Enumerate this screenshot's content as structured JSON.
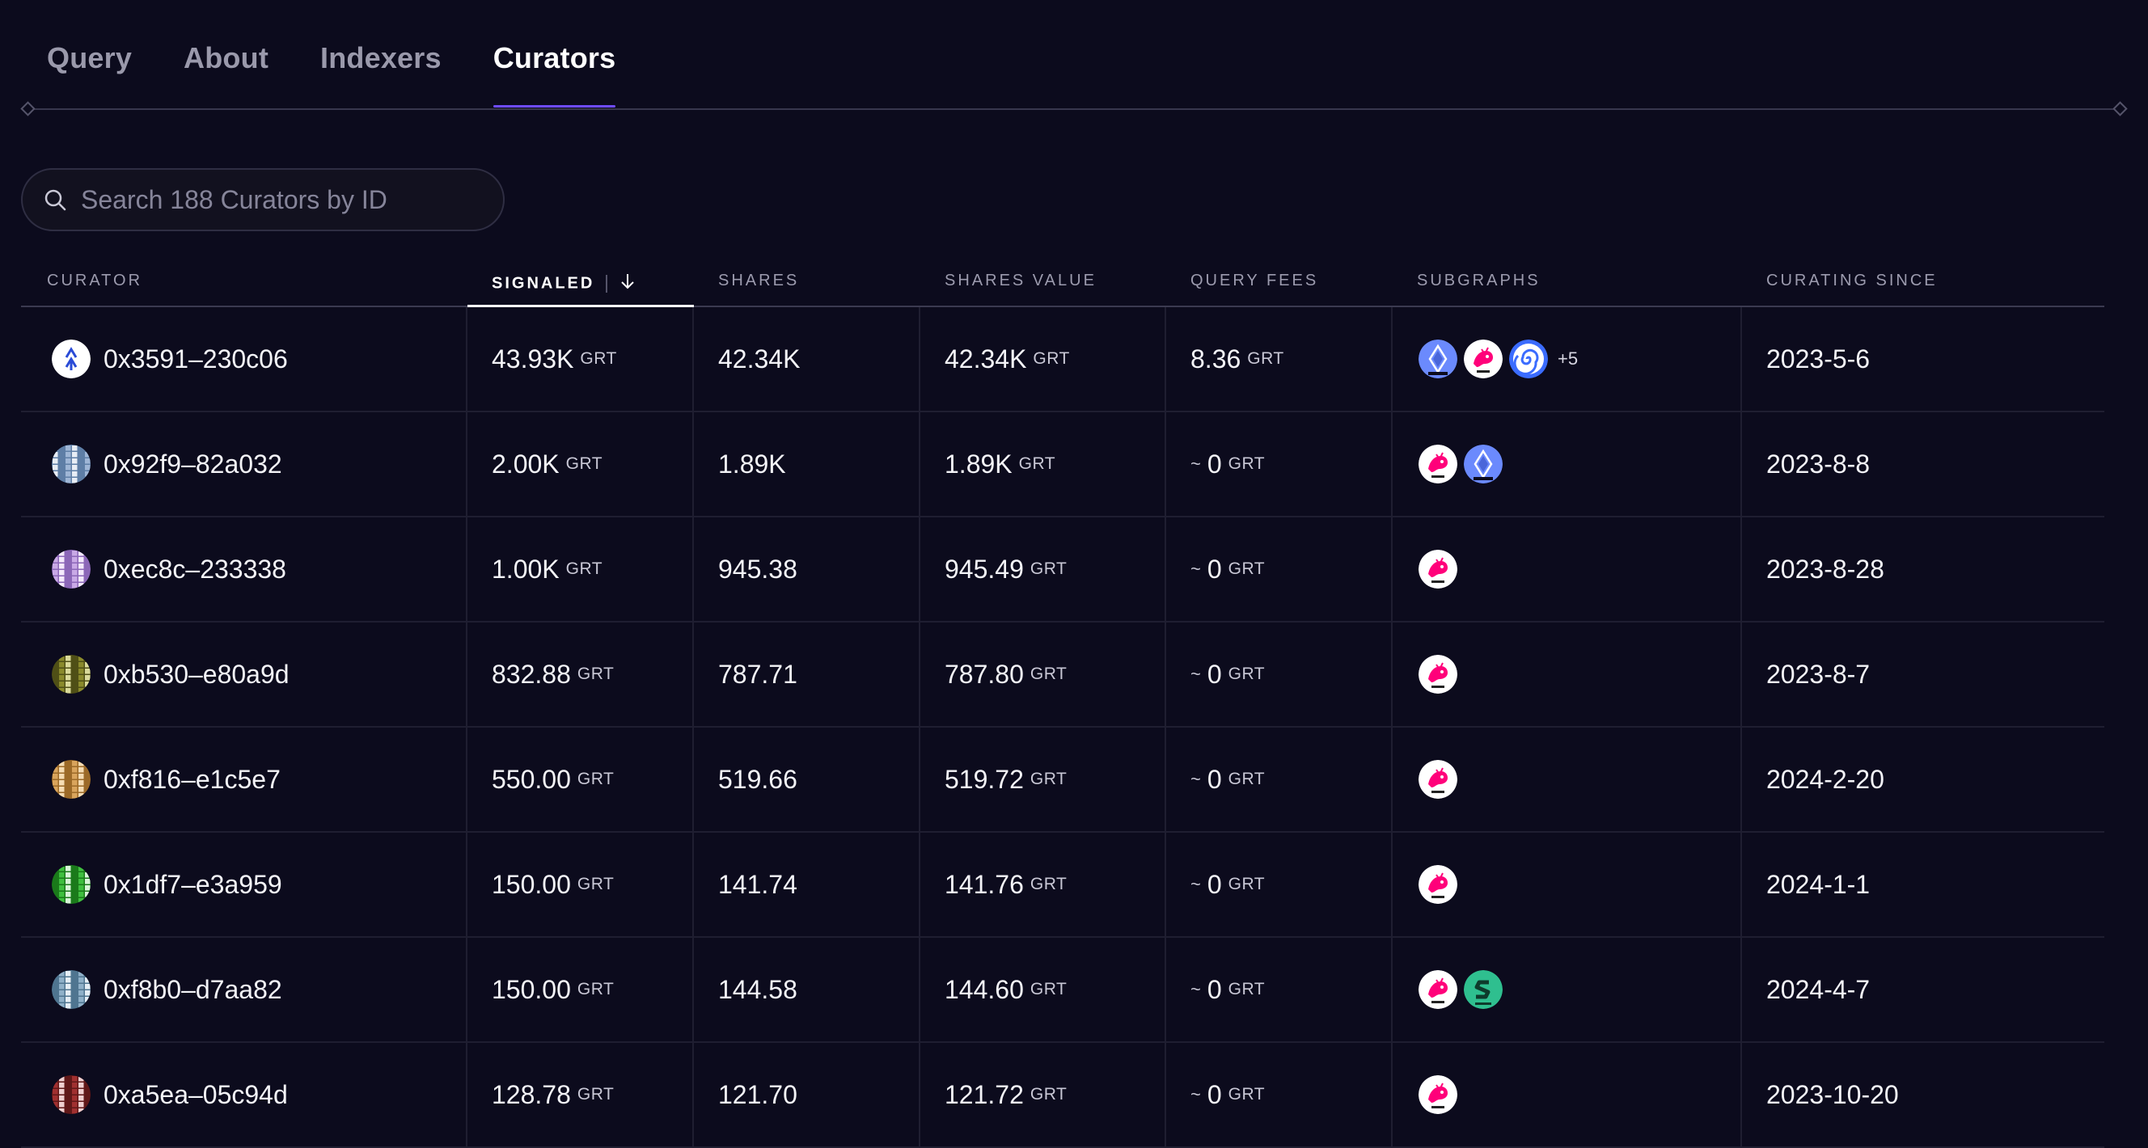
{
  "tabs": [
    {
      "label": "Query",
      "active": false
    },
    {
      "label": "About",
      "active": false
    },
    {
      "label": "Indexers",
      "active": false
    },
    {
      "label": "Curators",
      "active": true
    }
  ],
  "search": {
    "placeholder": "Search 188 Curators by ID",
    "value": ""
  },
  "table": {
    "columns": [
      "CURATOR",
      "SIGNALED",
      "SHARES",
      "SHARES VALUE",
      "QUERY FEES",
      "SUBGRAPHS",
      "CURATING SINCE"
    ],
    "sorted_column": "SIGNALED",
    "sort_direction": "descending",
    "unit": "GRT",
    "approx_symbol": "~",
    "rows": [
      {
        "curator": "0x3591–230c06",
        "avatar": "arrow-logo-avatar",
        "signaled": "43.93K",
        "shares": "42.34K",
        "shares_value": "42.34K",
        "query_fees_approx": false,
        "query_fees": "8.36",
        "subgraphs": [
          "ethereum-icon",
          "uniswap-icon",
          "spiral-icon"
        ],
        "subgraphs_more": "+5",
        "since": "2023-5-6"
      },
      {
        "curator": "0x92f9–82a032",
        "avatar": "blue-grid-avatar",
        "signaled": "2.00K",
        "shares": "1.89K",
        "shares_value": "1.89K",
        "query_fees_approx": true,
        "query_fees": "0",
        "subgraphs": [
          "uniswap-icon",
          "ethereum-icon"
        ],
        "subgraphs_more": "",
        "since": "2023-8-8"
      },
      {
        "curator": "0xec8c–233338",
        "avatar": "purple-grid-avatar",
        "signaled": "1.00K",
        "shares": "945.38",
        "shares_value": "945.49",
        "query_fees_approx": true,
        "query_fees": "0",
        "subgraphs": [
          "uniswap-icon"
        ],
        "subgraphs_more": "",
        "since": "2023-8-28"
      },
      {
        "curator": "0xb530–e80a9d",
        "avatar": "olive-grid-avatar",
        "signaled": "832.88",
        "shares": "787.71",
        "shares_value": "787.80",
        "query_fees_approx": true,
        "query_fees": "0",
        "subgraphs": [
          "uniswap-icon"
        ],
        "subgraphs_more": "",
        "since": "2023-8-7"
      },
      {
        "curator": "0xf816–e1c5e7",
        "avatar": "orange-grid-avatar",
        "signaled": "550.00",
        "shares": "519.66",
        "shares_value": "519.72",
        "query_fees_approx": true,
        "query_fees": "0",
        "subgraphs": [
          "uniswap-icon"
        ],
        "subgraphs_more": "",
        "since": "2024-2-20"
      },
      {
        "curator": "0x1df7–e3a959",
        "avatar": "green-grid-avatar",
        "signaled": "150.00",
        "shares": "141.74",
        "shares_value": "141.76",
        "query_fees_approx": true,
        "query_fees": "0",
        "subgraphs": [
          "uniswap-icon"
        ],
        "subgraphs_more": "",
        "since": "2024-1-1"
      },
      {
        "curator": "0xf8b0–d7aa82",
        "avatar": "steel-grid-avatar",
        "signaled": "150.00",
        "shares": "144.58",
        "shares_value": "144.60",
        "query_fees_approx": true,
        "query_fees": "0",
        "subgraphs": [
          "uniswap-icon",
          "green-s-icon"
        ],
        "subgraphs_more": "",
        "since": "2024-4-7"
      },
      {
        "curator": "0xa5ea–05c94d",
        "avatar": "red-grid-avatar",
        "signaled": "128.78",
        "shares": "121.70",
        "shares_value": "121.72",
        "query_fees_approx": true,
        "query_fees": "0",
        "subgraphs": [
          "uniswap-icon"
        ],
        "subgraphs_more": "",
        "since": "2023-10-20"
      }
    ]
  },
  "colors": {
    "background": "#0c0b1d",
    "tab_accent": "#6f4cff",
    "uniswap_pink": "#ff007a",
    "ethereum_blue": "#6b8afd",
    "spiral_blue": "#3b6cff",
    "green_s": "#2fbf8f"
  },
  "avatar_palettes": {
    "blue-grid-avatar": [
      "#9fb6d6",
      "#e8edf5",
      "#5e7ea6"
    ],
    "purple-grid-avatar": [
      "#c9a9e6",
      "#f3e9fb",
      "#8c67b8"
    ],
    "olive-grid-avatar": [
      "#8a8a2c",
      "#dada9a",
      "#4f4f16"
    ],
    "orange-grid-avatar": [
      "#d9a45c",
      "#f5dcb3",
      "#9c6a28"
    ],
    "green-grid-avatar": [
      "#3fbf3f",
      "#d8f5d8",
      "#1a7a1a"
    ],
    "steel-grid-avatar": [
      "#8fb0c8",
      "#e5eef5",
      "#4f7590"
    ],
    "red-grid-avatar": [
      "#a03030",
      "#f0d0d0",
      "#601818"
    ]
  }
}
